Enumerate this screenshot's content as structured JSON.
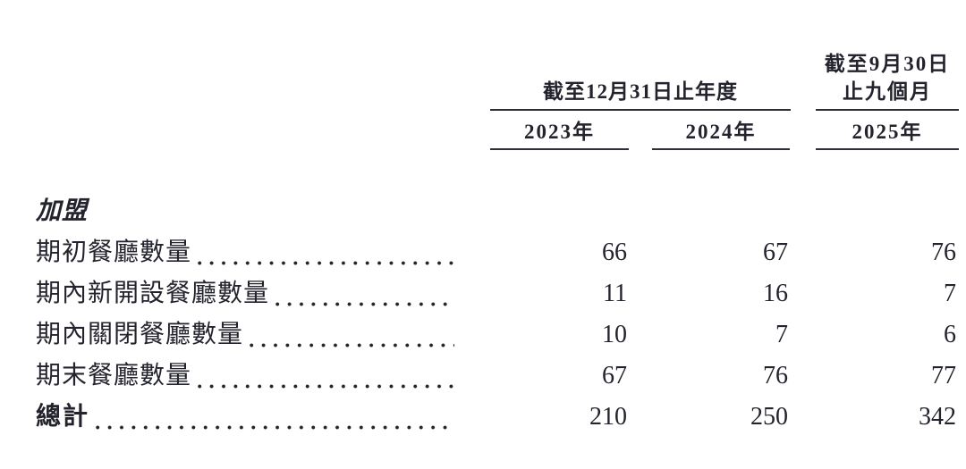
{
  "document": {
    "period_headers": {
      "annual": "截至12月31日止年度",
      "interim_line1": "截至9月30日",
      "interim_line2": "止九個月"
    },
    "year_columns": [
      "2023年",
      "2024年",
      "2025年"
    ],
    "section_label": "加盟",
    "rows": [
      {
        "label": "期初餐廳數量",
        "values": [
          "66",
          "67",
          "76"
        ]
      },
      {
        "label": "期內新開設餐廳數量",
        "values": [
          "11",
          "16",
          "7"
        ]
      },
      {
        "label": "期內關閉餐廳數量",
        "values": [
          "10",
          "7",
          "6"
        ]
      },
      {
        "label": "期末餐廳數量",
        "values": [
          "67",
          "76",
          "77"
        ]
      },
      {
        "label": "總計",
        "values": [
          "210",
          "250",
          "342"
        ]
      }
    ],
    "colors": {
      "ink": "#23232d",
      "rule": "#2e2e38",
      "background": "#ffffff"
    }
  }
}
